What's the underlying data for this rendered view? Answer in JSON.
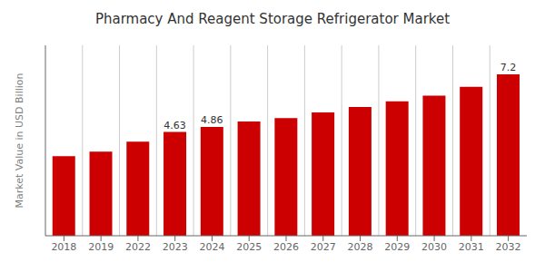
{
  "chart_data": {
    "type": "bar",
    "title": "Pharmacy And Reagent Storage Refrigerator Market",
    "ylabel": "Market Value in USD Billion",
    "categories": [
      "2018",
      "2019",
      "2022",
      "2023",
      "2024",
      "2025",
      "2026",
      "2027",
      "2028",
      "2029",
      "2030",
      "2031",
      "2032"
    ],
    "values": [
      3.55,
      3.75,
      4.2,
      4.63,
      4.86,
      5.1,
      5.25,
      5.5,
      5.75,
      6.0,
      6.25,
      6.65,
      7.2
    ],
    "color": "#cc0000",
    "ylim": [
      0,
      8.5
    ],
    "tick_labels": "x",
    "grid": true,
    "annotations": [
      {
        "category": "2023",
        "text": "4.63"
      },
      {
        "category": "2024",
        "text": "4.86"
      },
      {
        "category": "2032",
        "text": "7.2"
      }
    ]
  }
}
